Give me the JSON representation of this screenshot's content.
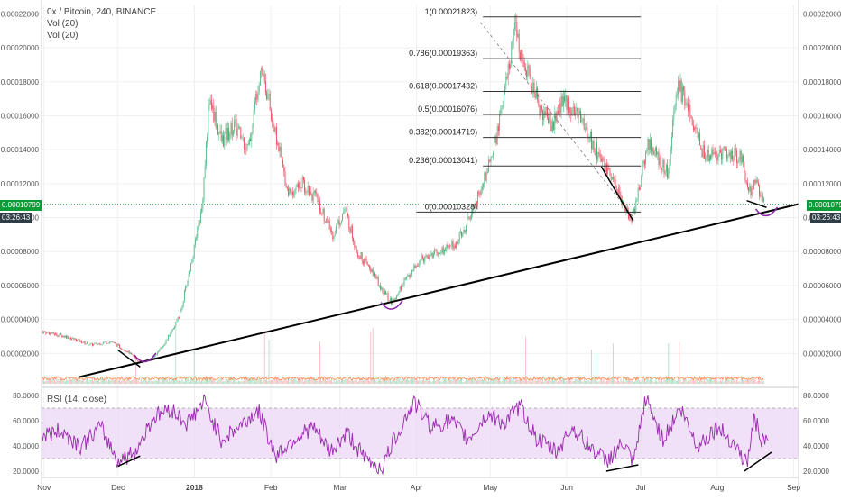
{
  "header": {
    "symbol_line": "0x / Bitcoin, 240, BINANCE",
    "vol_line_1": "Vol (20)",
    "vol_line_2": "Vol (20)",
    "rsi_label": "RSI (14, close)"
  },
  "price_badges": {
    "last_price": "0.00010799",
    "countdown": "03:26:43"
  },
  "colors": {
    "up_candle": "#53b987",
    "down_candle": "#eb4d5c",
    "rsi_line": "#9c27b0",
    "rsi_band": "#e9d3f5",
    "trendline": "#000000",
    "fib_line": "#333333",
    "last_price_line": "#0c9b37",
    "volume_ma": "#ff8a4c"
  },
  "chart_data": [
    {
      "type": "candlestick",
      "title": "0x / Bitcoin, 240, BINANCE",
      "x_ticks": [
        "Nov",
        "Dec",
        "2018",
        "Feb",
        "Mar",
        "Apr",
        "May",
        "Jun",
        "Jul",
        "Aug",
        "Sep"
      ],
      "y_ticks": [
        "0.00022000",
        "0.00020000",
        "0.00018000",
        "0.00016000",
        "0.00014000",
        "0.00012000",
        "0.00010000",
        "0.00008000",
        "0.00006000",
        "0.00004000",
        "0.00002000"
      ],
      "ylim": [
        0,
        0.000225
      ],
      "close_path": [
        {
          "x": "2017-10-31",
          "y": 3.3e-05
        },
        {
          "x": "2017-11-10",
          "y": 3e-05
        },
        {
          "x": "2017-11-20",
          "y": 2.5e-05
        },
        {
          "x": "2017-11-28",
          "y": 2.7e-05
        },
        {
          "x": "2017-12-05",
          "y": 2.1e-05
        },
        {
          "x": "2017-12-10",
          "y": 1.45e-05
        },
        {
          "x": "2017-12-15",
          "y": 1.7e-05
        },
        {
          "x": "2017-12-20",
          "y": 2.6e-05
        },
        {
          "x": "2017-12-26",
          "y": 4.2e-05
        },
        {
          "x": "2017-12-31",
          "y": 7.5e-05
        },
        {
          "x": "2018-01-04",
          "y": 0.000105
        },
        {
          "x": "2018-01-07",
          "y": 0.00017
        },
        {
          "x": "2018-01-12",
          "y": 0.000145
        },
        {
          "x": "2018-01-17",
          "y": 0.000155
        },
        {
          "x": "2018-01-23",
          "y": 0.00014
        },
        {
          "x": "2018-01-28",
          "y": 0.000192
        },
        {
          "x": "2018-02-02",
          "y": 0.000155
        },
        {
          "x": "2018-02-08",
          "y": 0.000115
        },
        {
          "x": "2018-02-14",
          "y": 0.00012
        },
        {
          "x": "2018-02-20",
          "y": 0.00011
        },
        {
          "x": "2018-02-26",
          "y": 9e-05
        },
        {
          "x": "2018-03-03",
          "y": 0.000105
        },
        {
          "x": "2018-03-08",
          "y": 8e-05
        },
        {
          "x": "2018-03-14",
          "y": 6.8e-05
        },
        {
          "x": "2018-03-19",
          "y": 5.6e-05
        },
        {
          "x": "2018-03-22",
          "y": 5e-05
        },
        {
          "x": "2018-03-27",
          "y": 6.2e-05
        },
        {
          "x": "2018-03-31",
          "y": 7e-05
        },
        {
          "x": "2018-04-05",
          "y": 7.8e-05
        },
        {
          "x": "2018-04-11",
          "y": 8e-05
        },
        {
          "x": "2018-04-17",
          "y": 8.5e-05
        },
        {
          "x": "2018-04-23",
          "y": 0.0001
        },
        {
          "x": "2018-04-28",
          "y": 0.00012
        },
        {
          "x": "2018-05-03",
          "y": 0.000145
        },
        {
          "x": "2018-05-07",
          "y": 0.000175
        },
        {
          "x": "2018-05-11",
          "y": 0.00021
        },
        {
          "x": "2018-05-16",
          "y": 0.000185
        },
        {
          "x": "2018-05-21",
          "y": 0.000165
        },
        {
          "x": "2018-05-26",
          "y": 0.000155
        },
        {
          "x": "2018-05-31",
          "y": 0.00017
        },
        {
          "x": "2018-06-06",
          "y": 0.00016
        },
        {
          "x": "2018-06-11",
          "y": 0.000145
        },
        {
          "x": "2018-06-16",
          "y": 0.00013
        },
        {
          "x": "2018-06-22",
          "y": 0.000115
        },
        {
          "x": "2018-06-27",
          "y": 9.8e-05
        },
        {
          "x": "2018-06-30",
          "y": 0.000115
        },
        {
          "x": "2018-07-04",
          "y": 0.000145
        },
        {
          "x": "2018-07-08",
          "y": 0.000135
        },
        {
          "x": "2018-07-12",
          "y": 0.000125
        },
        {
          "x": "2018-07-16",
          "y": 0.00018
        },
        {
          "x": "2018-07-21",
          "y": 0.00016
        },
        {
          "x": "2018-07-26",
          "y": 0.00014
        },
        {
          "x": "2018-07-31",
          "y": 0.000135
        },
        {
          "x": "2018-08-05",
          "y": 0.00014
        },
        {
          "x": "2018-08-11",
          "y": 0.000135
        },
        {
          "x": "2018-08-14",
          "y": 0.000115
        },
        {
          "x": "2018-08-17",
          "y": 0.00012
        },
        {
          "x": "2018-08-20",
          "y": 0.000108
        }
      ],
      "fibonacci_levels": [
        {
          "label": "1(0.00021823)",
          "value": 0.00021823
        },
        {
          "label": "0.786(0.00019363)",
          "value": 0.00019363
        },
        {
          "label": "0.618(0.00017432)",
          "value": 0.00017432
        },
        {
          "label": "0.5(0.00016076)",
          "value": 0.00016076
        },
        {
          "label": "0.382(0.00014719)",
          "value": 0.00014719
        },
        {
          "label": "0.236(0.00013041)",
          "value": 0.00013041
        },
        {
          "label": "0(0.00010328)",
          "value": 0.00010328
        }
      ],
      "trendline": [
        {
          "x": "2017-11-15",
          "y": 6e-06
        },
        {
          "x": "2018-09-03",
          "y": 0.000108
        }
      ],
      "last_price": 0.00010799
    },
    {
      "type": "line",
      "title": "RSI (14, close)",
      "y_ticks": [
        "80.0000",
        "60.0000",
        "40.0000",
        "20.0000"
      ],
      "ylim": [
        15,
        85
      ],
      "band": [
        30,
        70
      ],
      "rsi_path": [
        {
          "x": "2017-10-31",
          "y": 48
        },
        {
          "x": "2017-11-08",
          "y": 52
        },
        {
          "x": "2017-11-16",
          "y": 40
        },
        {
          "x": "2017-11-24",
          "y": 55
        },
        {
          "x": "2017-12-01",
          "y": 28
        },
        {
          "x": "2017-12-08",
          "y": 35
        },
        {
          "x": "2017-12-15",
          "y": 62
        },
        {
          "x": "2017-12-22",
          "y": 70
        },
        {
          "x": "2017-12-29",
          "y": 58
        },
        {
          "x": "2018-01-05",
          "y": 75
        },
        {
          "x": "2018-01-12",
          "y": 45
        },
        {
          "x": "2018-01-19",
          "y": 55
        },
        {
          "x": "2018-01-27",
          "y": 68
        },
        {
          "x": "2018-02-03",
          "y": 32
        },
        {
          "x": "2018-02-10",
          "y": 45
        },
        {
          "x": "2018-02-18",
          "y": 55
        },
        {
          "x": "2018-02-25",
          "y": 35
        },
        {
          "x": "2018-03-04",
          "y": 50
        },
        {
          "x": "2018-03-11",
          "y": 30
        },
        {
          "x": "2018-03-18",
          "y": 22
        },
        {
          "x": "2018-03-23",
          "y": 45
        },
        {
          "x": "2018-03-31",
          "y": 75
        },
        {
          "x": "2018-04-07",
          "y": 55
        },
        {
          "x": "2018-04-15",
          "y": 60
        },
        {
          "x": "2018-04-22",
          "y": 45
        },
        {
          "x": "2018-04-30",
          "y": 65
        },
        {
          "x": "2018-05-07",
          "y": 58
        },
        {
          "x": "2018-05-13",
          "y": 72
        },
        {
          "x": "2018-05-20",
          "y": 45
        },
        {
          "x": "2018-05-28",
          "y": 35
        },
        {
          "x": "2018-06-03",
          "y": 55
        },
        {
          "x": "2018-06-10",
          "y": 40
        },
        {
          "x": "2018-06-17",
          "y": 28
        },
        {
          "x": "2018-06-24",
          "y": 42
        },
        {
          "x": "2018-06-28",
          "y": 25
        },
        {
          "x": "2018-07-03",
          "y": 78
        },
        {
          "x": "2018-07-10",
          "y": 45
        },
        {
          "x": "2018-07-17",
          "y": 70
        },
        {
          "x": "2018-07-24",
          "y": 40
        },
        {
          "x": "2018-08-01",
          "y": 55
        },
        {
          "x": "2018-08-08",
          "y": 42
        },
        {
          "x": "2018-08-13",
          "y": 25
        },
        {
          "x": "2018-08-16",
          "y": 62
        },
        {
          "x": "2018-08-20",
          "y": 40
        },
        {
          "x": "2018-08-22",
          "y": 48
        }
      ]
    }
  ]
}
